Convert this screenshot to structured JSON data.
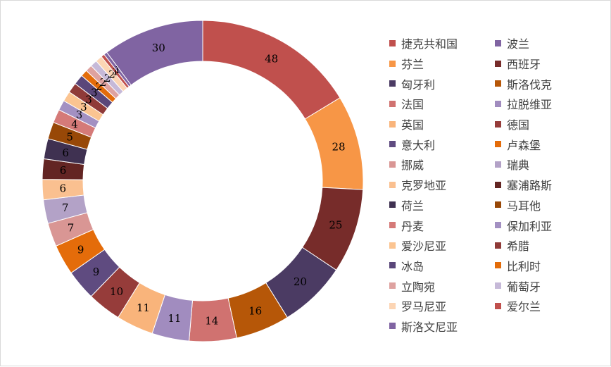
{
  "chart_data": {
    "type": "pie",
    "variant": "donut",
    "title": "",
    "legend_position": "right",
    "categories": [
      "捷克共和国",
      "波兰",
      "芬兰",
      "西班牙",
      "匈牙利",
      "斯洛伐克",
      "法国",
      "拉脱维亚",
      "英国",
      "德国",
      "意大利",
      "卢森堡",
      "挪威",
      "瑞典",
      "克罗地亚",
      "塞浦路斯",
      "荷兰",
      "马耳他",
      "丹麦",
      "保加利亚",
      "爱沙尼亚",
      "希腊",
      "冰岛",
      "比利时",
      "立陶宛",
      "葡萄牙",
      "罗马尼亚",
      "爱尔兰",
      "斯洛文尼亚"
    ],
    "values": [
      48,
      30,
      28,
      25,
      20,
      16,
      14,
      11,
      11,
      10,
      9,
      9,
      7,
      7,
      6,
      6,
      6,
      5,
      4,
      3,
      3,
      3,
      3,
      2,
      2,
      2,
      2,
      1,
      1
    ],
    "colors": [
      "#c0504d",
      "#8064a2",
      "#f79646",
      "#772c2a",
      "#4b3b63",
      "#b65708",
      "#d07270",
      "#a18cbf",
      "#f9b47b",
      "#963c3a",
      "#5f4b80",
      "#e46c0a",
      "#d99694",
      "#b3a2c7",
      "#fac090",
      "#632523",
      "#3f3151",
      "#984807",
      "#d57a78",
      "#a390c2",
      "#fbc491",
      "#8f3a38",
      "#5a477a",
      "#e36c0a",
      "#dea2a0",
      "#c6b9d8",
      "#fcd5b4",
      "#c0504d",
      "#8064a2"
    ],
    "slice_order": [
      0,
      2,
      3,
      4,
      5,
      6,
      7,
      8,
      9,
      10,
      11,
      12,
      13,
      14,
      15,
      16,
      17,
      18,
      19,
      20,
      21,
      22,
      23,
      24,
      25,
      26,
      27,
      28,
      1
    ]
  }
}
